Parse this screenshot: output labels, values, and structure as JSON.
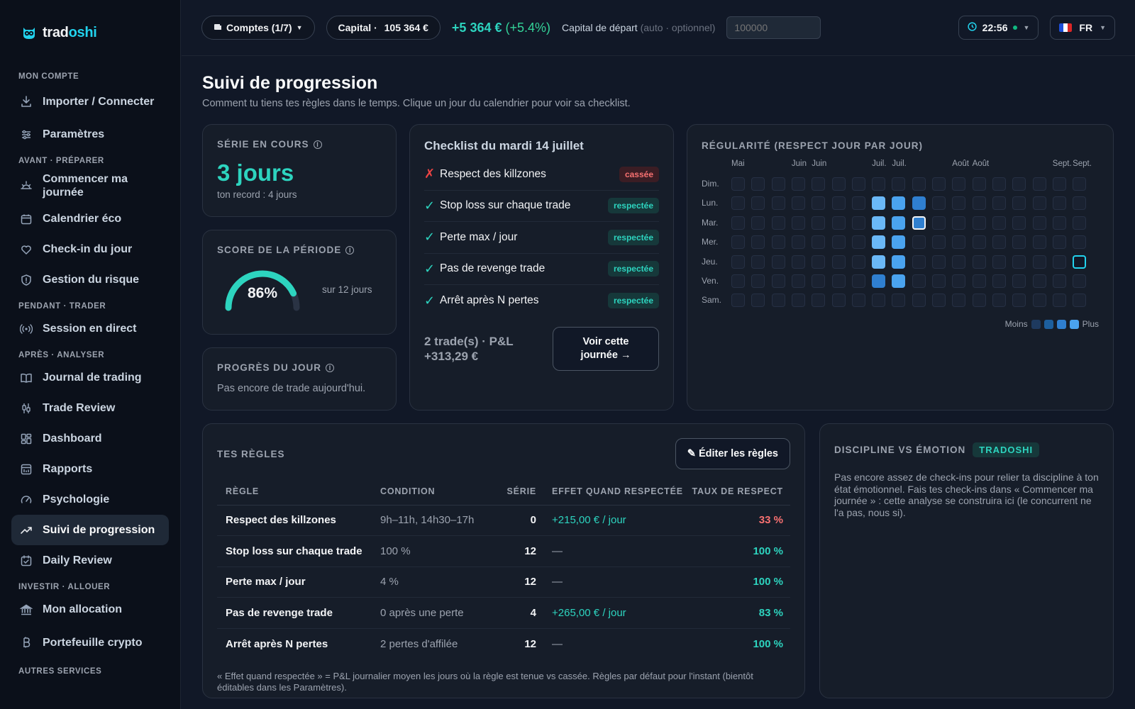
{
  "app": {
    "name_main": "trad",
    "name_accent": "oshi"
  },
  "sidebar": {
    "sections": [
      {
        "label": "MON COMPTE",
        "items": [
          {
            "label": "Importer / Connecter",
            "icon": "download-icon"
          },
          {
            "label": "Paramètres",
            "icon": "sliders-icon"
          }
        ]
      },
      {
        "label": "AVANT · PRÉPARER",
        "items": [
          {
            "label": "Commencer ma journée",
            "icon": "sunrise-icon"
          },
          {
            "label": "Calendrier éco",
            "icon": "calendar-icon"
          },
          {
            "label": "Check-in du jour",
            "icon": "heart-icon"
          },
          {
            "label": "Gestion du risque",
            "icon": "shield-icon"
          }
        ]
      },
      {
        "label": "PENDANT · TRADER",
        "items": [
          {
            "label": "Session en direct",
            "icon": "broadcast-icon"
          }
        ]
      },
      {
        "label": "APRÈS · ANALYSER",
        "items": [
          {
            "label": "Journal de trading",
            "icon": "book-icon"
          },
          {
            "label": "Trade Review",
            "icon": "candles-icon"
          },
          {
            "label": "Dashboard",
            "icon": "grid-icon"
          },
          {
            "label": "Rapports",
            "icon": "report-icon"
          },
          {
            "label": "Psychologie",
            "icon": "gauge-icon"
          },
          {
            "label": "Suivi de progression",
            "icon": "trend-up-icon",
            "active": true
          },
          {
            "label": "Daily Review",
            "icon": "calendar-check-icon"
          }
        ]
      },
      {
        "label": "INVESTIR · ALLOUER",
        "items": [
          {
            "label": "Mon allocation",
            "icon": "bank-icon"
          },
          {
            "label": "Portefeuille crypto",
            "icon": "bitcoin-icon"
          }
        ]
      },
      {
        "label": "AUTRES SERVICES",
        "items": []
      }
    ]
  },
  "topbar": {
    "accounts": "Comptes (1/7)",
    "capital_label": "Capital · ",
    "capital_value": "105 364 €",
    "pnl": "+5 364 €",
    "pnl_pct": "(+5.4%)",
    "start_capital_label": "Capital de départ",
    "start_capital_hint": "(auto · optionnel)",
    "start_capital_placeholder": "100000",
    "time": "22:56",
    "lang": "FR"
  },
  "page": {
    "title": "Suivi de progression",
    "subtitle": "Comment tu tiens tes règles dans le temps. Clique un jour du calendrier pour voir sa checklist."
  },
  "streak": {
    "label": "SÉRIE EN COURS",
    "value": "3 jours",
    "record": "ton record : 4 jours"
  },
  "score": {
    "label": "SCORE DE LA PÉRIODE",
    "value": "86%",
    "fraction": 0.86,
    "side": "sur 12 jours"
  },
  "today": {
    "label": "PROGRÈS DU JOUR",
    "text": "Pas encore de trade aujourd'hui."
  },
  "checklist": {
    "title": "Checklist du mardi 14 juillet",
    "items": [
      {
        "text": "Respect des killzones",
        "status": "cassée",
        "ok": false
      },
      {
        "text": "Stop loss sur chaque trade",
        "status": "respectée",
        "ok": true
      },
      {
        "text": "Perte max / jour",
        "status": "respectée",
        "ok": true
      },
      {
        "text": "Pas de revenge trade",
        "status": "respectée",
        "ok": true
      },
      {
        "text": "Arrêt après N pertes",
        "status": "respectée",
        "ok": true
      }
    ],
    "summary_line1": "2 trade(s) · P&L",
    "summary_line2": "+313,29 €",
    "button": "Voir cette journée →"
  },
  "heatmap": {
    "label": "RÉGULARITÉ (RESPECT JOUR PAR JOUR)",
    "months": [
      {
        "label": "Mai",
        "col": 0
      },
      {
        "label": "Juin",
        "col": 3
      },
      {
        "label": "Juin",
        "col": 4
      },
      {
        "label": "Juil.",
        "col": 7
      },
      {
        "label": "Juil.",
        "col": 8
      },
      {
        "label": "Août",
        "col": 11
      },
      {
        "label": "Août",
        "col": 12
      },
      {
        "label": "Sept.",
        "col": 16
      },
      {
        "label": "Sept.",
        "col": 17
      }
    ],
    "days": [
      "Dim.",
      "Lun.",
      "Mar.",
      "Mer.",
      "Jeu.",
      "Ven.",
      "Sam."
    ],
    "columns": 18,
    "levels": [
      {
        "row": 1,
        "col": 7,
        "level": 4
      },
      {
        "row": 1,
        "col": 8,
        "level": 3
      },
      {
        "row": 1,
        "col": 9,
        "level": 2
      },
      {
        "row": 2,
        "col": 7,
        "level": 4
      },
      {
        "row": 2,
        "col": 8,
        "level": 3
      },
      {
        "row": 2,
        "col": 9,
        "level": 2,
        "selected": true
      },
      {
        "row": 3,
        "col": 7,
        "level": 4
      },
      {
        "row": 3,
        "col": 8,
        "level": 3
      },
      {
        "row": 4,
        "col": 7,
        "level": 4
      },
      {
        "row": 4,
        "col": 8,
        "level": 3
      },
      {
        "row": 4,
        "col": 17,
        "level": 0,
        "today": true
      },
      {
        "row": 5,
        "col": 7,
        "level": 2
      },
      {
        "row": 5,
        "col": 8,
        "level": 3
      }
    ],
    "legend_less": "Moins",
    "legend_more": "Plus",
    "colors": [
      "#1e3a5f",
      "#1d5f9e",
      "#2f7fd0",
      "#4aa3ef",
      "#6ab8f7"
    ]
  },
  "rules": {
    "label": "TES RÈGLES",
    "edit_button": "✎ Éditer les règles",
    "headers": [
      "RÈGLE",
      "CONDITION",
      "SÉRIE",
      "EFFET QUAND RESPECTÉE",
      "TAUX DE RESPECT"
    ],
    "rows": [
      {
        "name": "Respect des killzones",
        "condition": "9h–11h, 14h30–17h",
        "streak": "0",
        "effect": "+215,00 € / jour",
        "rate": "33 %",
        "rate_color": "#f87171"
      },
      {
        "name": "Stop loss sur chaque trade",
        "condition": "100 %",
        "streak": "12",
        "effect": "—",
        "rate": "100 %",
        "rate_color": "#2dd4bf"
      },
      {
        "name": "Perte max / jour",
        "condition": "4 %",
        "streak": "12",
        "effect": "—",
        "rate": "100 %",
        "rate_color": "#2dd4bf"
      },
      {
        "name": "Pas de revenge trade",
        "condition": "0 après une perte",
        "streak": "4",
        "effect": "+265,00 € / jour",
        "rate": "83 %",
        "rate_color": "#2dd4bf"
      },
      {
        "name": "Arrêt après N pertes",
        "condition": "2 pertes d'affilée",
        "streak": "12",
        "effect": "—",
        "rate": "100 %",
        "rate_color": "#2dd4bf"
      }
    ],
    "note": "« Effet quand respectée » = P&L journalier moyen les jours où la règle est tenue vs cassée. Règles par défaut pour l'instant (bientôt éditables dans les Paramètres)."
  },
  "discipline": {
    "label": "DISCIPLINE VS ÉMOTION",
    "tag": "TRADOSHI",
    "text": "Pas encore assez de check-ins pour relier ta discipline à ton état émotionnel. Fais tes check-ins dans « Commencer ma journée » : cette analyse se construira ici (le concurrent ne l'a pas, nous si)."
  }
}
